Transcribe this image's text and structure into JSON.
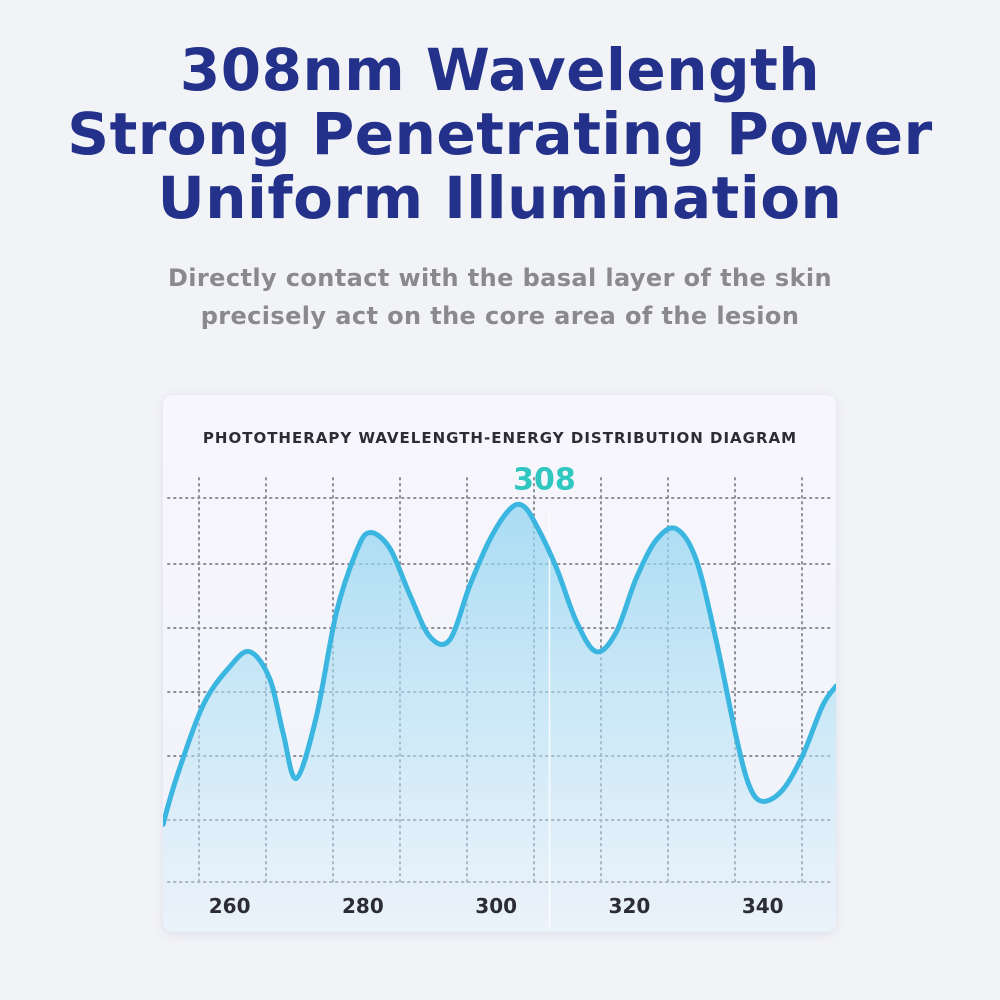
{
  "headline": {
    "line1": "308nm Wavelength",
    "line2": "Strong Penetrating Power",
    "line3": "Uniform Illumination"
  },
  "subtext": {
    "line1": "Directly contact with the basal layer of the skin",
    "line2": "precisely act on the core area of the lesion"
  },
  "colors": {
    "headline": "#23318b",
    "curve": "#3bb6e0",
    "peak_label": "#2fc7c0",
    "grid": "#8d8f99"
  },
  "chart_data": {
    "type": "area",
    "title": "PHOTOTHERAPY WAVELENGTH-ENERGY DISTRIBUTION DIAGRAM",
    "xlabel": "",
    "ylabel": "",
    "x_ticks": [
      260,
      280,
      300,
      320,
      340
    ],
    "xlim": [
      250,
      351
    ],
    "ylim": [
      0,
      100
    ],
    "grid": true,
    "annotation": {
      "x": 308,
      "label": "308"
    },
    "series": [
      {
        "x": [
          250,
          252,
          256,
          260,
          263,
          266,
          268,
          270,
          273,
          276,
          279,
          281,
          284,
          287,
          290,
          293,
          296,
          299,
          302,
          304,
          306,
          309,
          312,
          315,
          318,
          321,
          324,
          327,
          330,
          333,
          336,
          338,
          340,
          343,
          346,
          349,
          351
        ],
        "y": [
          15,
          27,
          46,
          56,
          60,
          53,
          39,
          27,
          43,
          70,
          86,
          91,
          87,
          75,
          64,
          63,
          77,
          89,
          97,
          98,
          93,
          82,
          68,
          60,
          65,
          79,
          89,
          92,
          84,
          63,
          38,
          25,
          21,
          24,
          33,
          46,
          51
        ]
      }
    ]
  }
}
